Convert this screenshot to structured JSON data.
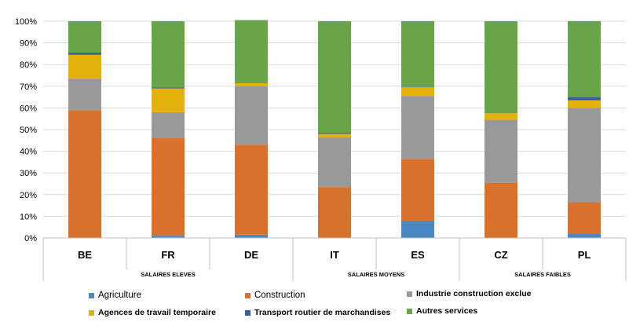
{
  "chart_data": {
    "type": "bar",
    "stacked": true,
    "normalized": true,
    "categories": [
      "BE",
      "FR",
      "DE",
      "IT",
      "ES",
      "CZ",
      "PL"
    ],
    "groups": [
      {
        "label": "SALAIRES ELEVES",
        "categories": [
          "BE",
          "FR",
          "DE"
        ]
      },
      {
        "label": "SALAIRES MOYENS",
        "categories": [
          "IT",
          "ES"
        ]
      },
      {
        "label": "SALAIRES FAIBLES",
        "categories": [
          "CZ",
          "PL"
        ]
      }
    ],
    "series": [
      {
        "name": "Agriculture",
        "color": "#4a87c5",
        "values": [
          0,
          1,
          1.5,
          0,
          8,
          0,
          2
        ]
      },
      {
        "name": "Construction",
        "color": "#d8702e",
        "values": [
          59,
          45,
          41.5,
          23.5,
          28.5,
          25.5,
          14.5
        ]
      },
      {
        "name": "Industrie construction exclue",
        "color": "#999999",
        "values": [
          14.5,
          12,
          27,
          23,
          29,
          29,
          43.5
        ]
      },
      {
        "name": "Agences de travail temporaire",
        "color": "#e4b00a",
        "values": [
          11,
          11,
          1.5,
          1.5,
          4,
          3,
          3.5
        ]
      },
      {
        "name": "Transport routier de marchandises",
        "color": "#3b5d9c",
        "values": [
          1,
          0.5,
          0.3,
          0.5,
          0.2,
          0,
          1.5
        ]
      },
      {
        "name": "Autres services",
        "color": "#68a548",
        "values": [
          14.5,
          30.5,
          28.7,
          51.5,
          30.3,
          42.5,
          35
        ]
      }
    ],
    "ylim": [
      0,
      100
    ],
    "yticks": [
      "0%",
      "10%",
      "20%",
      "30%",
      "40%",
      "50%",
      "60%",
      "70%",
      "80%",
      "90%",
      "100%"
    ],
    "grid": true,
    "legend_position": "bottom",
    "legend_bold": [
      false,
      false,
      true,
      true,
      true,
      true
    ]
  }
}
